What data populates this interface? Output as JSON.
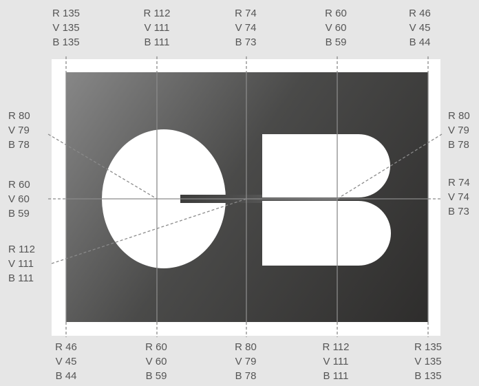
{
  "top_labels": [
    {
      "r": "R 135",
      "v": "V 135",
      "b": "B 135"
    },
    {
      "r": "R 112",
      "v": "V 111",
      "b": "B 111"
    },
    {
      "r": "R 74",
      "v": "V 74",
      "b": "B 73"
    },
    {
      "r": "R 60",
      "v": "V 60",
      "b": "B 59"
    },
    {
      "r": "R 46",
      "v": "V 45",
      "b": "B 44"
    }
  ],
  "bottom_labels": [
    {
      "r": "R 46",
      "v": "V 45",
      "b": "B 44"
    },
    {
      "r": "R 60",
      "v": "V 60",
      "b": "B 59"
    },
    {
      "r": "R 80",
      "v": "V 79",
      "b": "B 78"
    },
    {
      "r": "R 112",
      "v": "V 111",
      "b": "B 111"
    },
    {
      "r": "R 135",
      "v": "V 135",
      "b": "B 135"
    }
  ],
  "left_labels": [
    {
      "r": "R 80",
      "v": "V 79",
      "b": "B 78"
    },
    {
      "r": "R 60",
      "v": "V 60",
      "b": "B 59"
    },
    {
      "r": "R 112",
      "v": "V 111",
      "b": "B 111"
    }
  ],
  "right_labels": [
    {
      "r": "R 80",
      "v": "V 79",
      "b": "B 78"
    },
    {
      "r": "R 74",
      "v": "V 74",
      "b": "B 73"
    }
  ],
  "colors": {
    "page_background": "#e6e6e6",
    "card_frame": "#ffffff",
    "gradient_light": "#878787",
    "gradient_mid": "#4a4a49",
    "gradient_dark": "#2e2d2c",
    "logo": "#ffffff",
    "guide_line": "#8a8a8a"
  }
}
